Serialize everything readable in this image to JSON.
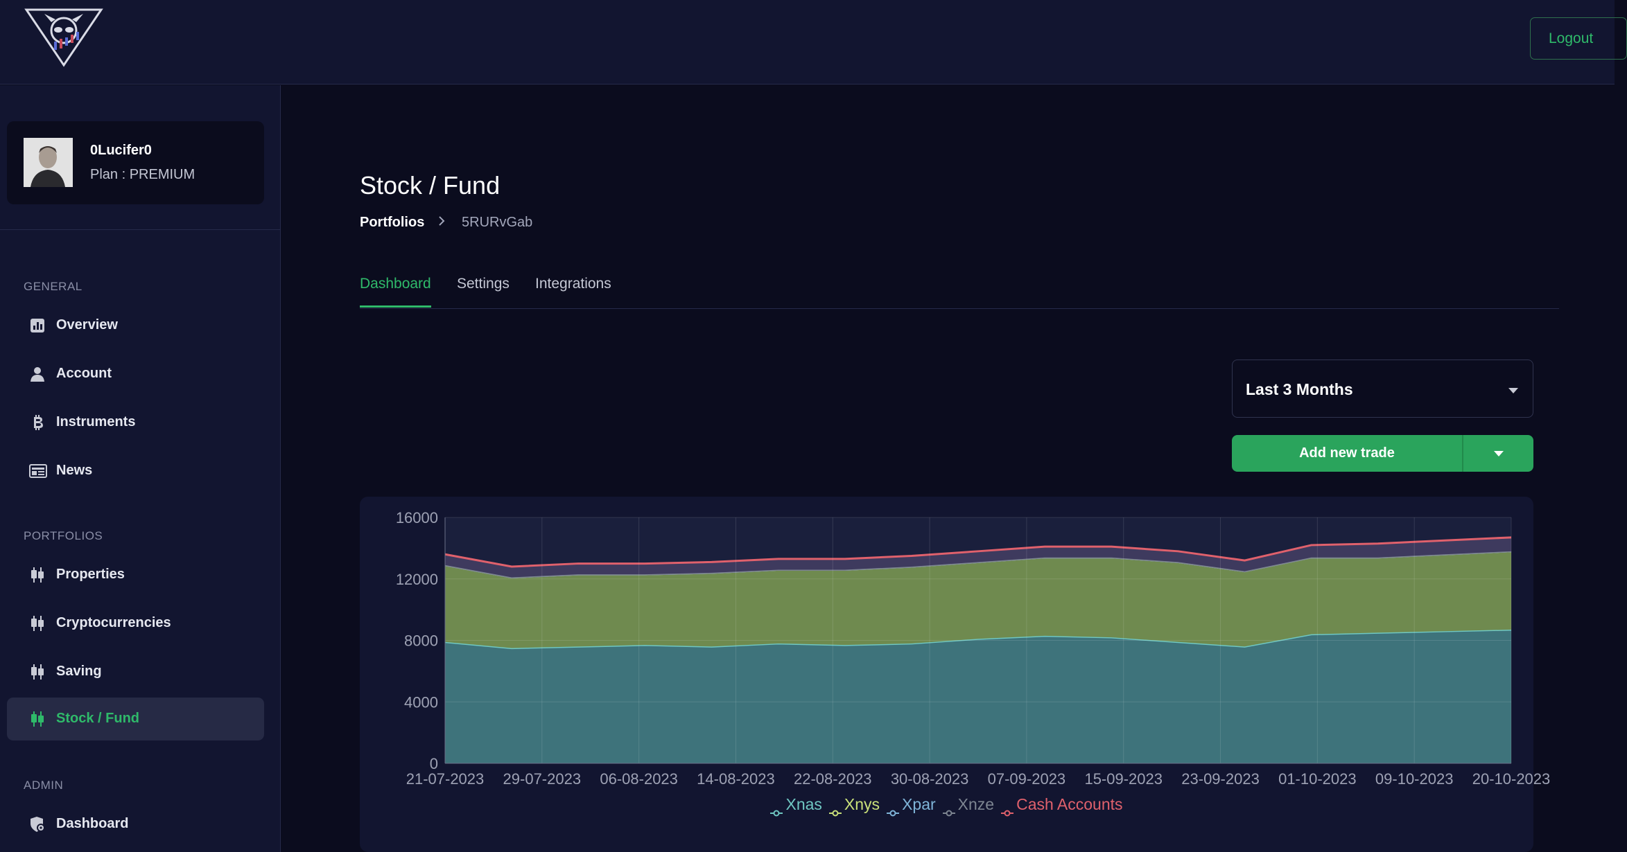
{
  "header": {
    "logout_label": "Logout"
  },
  "profile": {
    "username": "0Lucifer0",
    "plan": "Plan : PREMIUM"
  },
  "sidebar": {
    "sections": [
      {
        "title": "GENERAL",
        "items": [
          {
            "label": "Overview",
            "icon": "bar-chart-icon"
          },
          {
            "label": "Account",
            "icon": "user-icon"
          },
          {
            "label": "Instruments",
            "icon": "bitcoin-icon"
          },
          {
            "label": "News",
            "icon": "newspaper-icon"
          }
        ]
      },
      {
        "title": "PORTFOLIOS",
        "items": [
          {
            "label": "Properties",
            "icon": "candlestick-icon"
          },
          {
            "label": "Cryptocurrencies",
            "icon": "candlestick-icon"
          },
          {
            "label": "Saving",
            "icon": "candlestick-icon"
          },
          {
            "label": "Stock / Fund",
            "icon": "candlestick-icon",
            "active": true
          }
        ]
      },
      {
        "title": "ADMIN",
        "items": [
          {
            "label": "Dashboard",
            "icon": "shield-gear-icon"
          }
        ]
      }
    ]
  },
  "page": {
    "title": "Stock / Fund",
    "breadcrumb": [
      "Portfolios",
      "5RURvGab"
    ],
    "tabs": [
      "Dashboard",
      "Settings",
      "Integrations"
    ],
    "active_tab": "Dashboard"
  },
  "controls": {
    "period_value": "Last 3 Months",
    "add_trade_label": "Add new trade"
  },
  "colors": {
    "accent": "#2fba6a",
    "background": "#0b0c1e",
    "panel": "#121530"
  },
  "chart_data": {
    "type": "area",
    "stacked": true,
    "ylim": [
      0,
      16000
    ],
    "yticks": [
      0,
      4000,
      8000,
      12000,
      16000
    ],
    "xtick_labels": [
      "21-07-2023",
      "29-07-2023",
      "06-08-2023",
      "14-08-2023",
      "22-08-2023",
      "30-08-2023",
      "07-09-2023",
      "15-09-2023",
      "23-09-2023",
      "01-10-2023",
      "09-10-2023",
      "20-10-2023"
    ],
    "grid": true,
    "legend_position": "bottom",
    "series": [
      {
        "name": "Xnas",
        "color": "#6fc7c2",
        "values": [
          7900,
          7500,
          7600,
          7700,
          7600,
          7800,
          7700,
          7800,
          8100,
          8300,
          8200,
          7900,
          7600,
          8400,
          8500,
          8600,
          8700
        ]
      },
      {
        "name": "Xnys",
        "color": "#c9e07a",
        "values": [
          5000,
          4600,
          4700,
          4600,
          4800,
          4800,
          4900,
          5000,
          5000,
          5100,
          5200,
          5200,
          4900,
          5000,
          4900,
          5000,
          5100
        ]
      },
      {
        "name": "Xpar",
        "color": "#7fb4d8",
        "values": [
          0,
          0,
          0,
          0,
          0,
          0,
          0,
          0,
          0,
          0,
          0,
          0,
          0,
          0,
          0,
          0,
          0
        ]
      },
      {
        "name": "Xnze",
        "color": "#7d8591",
        "values": [
          0,
          0,
          0,
          0,
          0,
          0,
          0,
          0,
          0,
          0,
          0,
          0,
          0,
          0,
          0,
          0,
          0
        ]
      },
      {
        "name": "Cash Accounts",
        "color": "#e0616c",
        "values": [
          700,
          700,
          700,
          700,
          700,
          700,
          700,
          700,
          700,
          700,
          700,
          700,
          700,
          800,
          900,
          900,
          900
        ]
      }
    ]
  }
}
